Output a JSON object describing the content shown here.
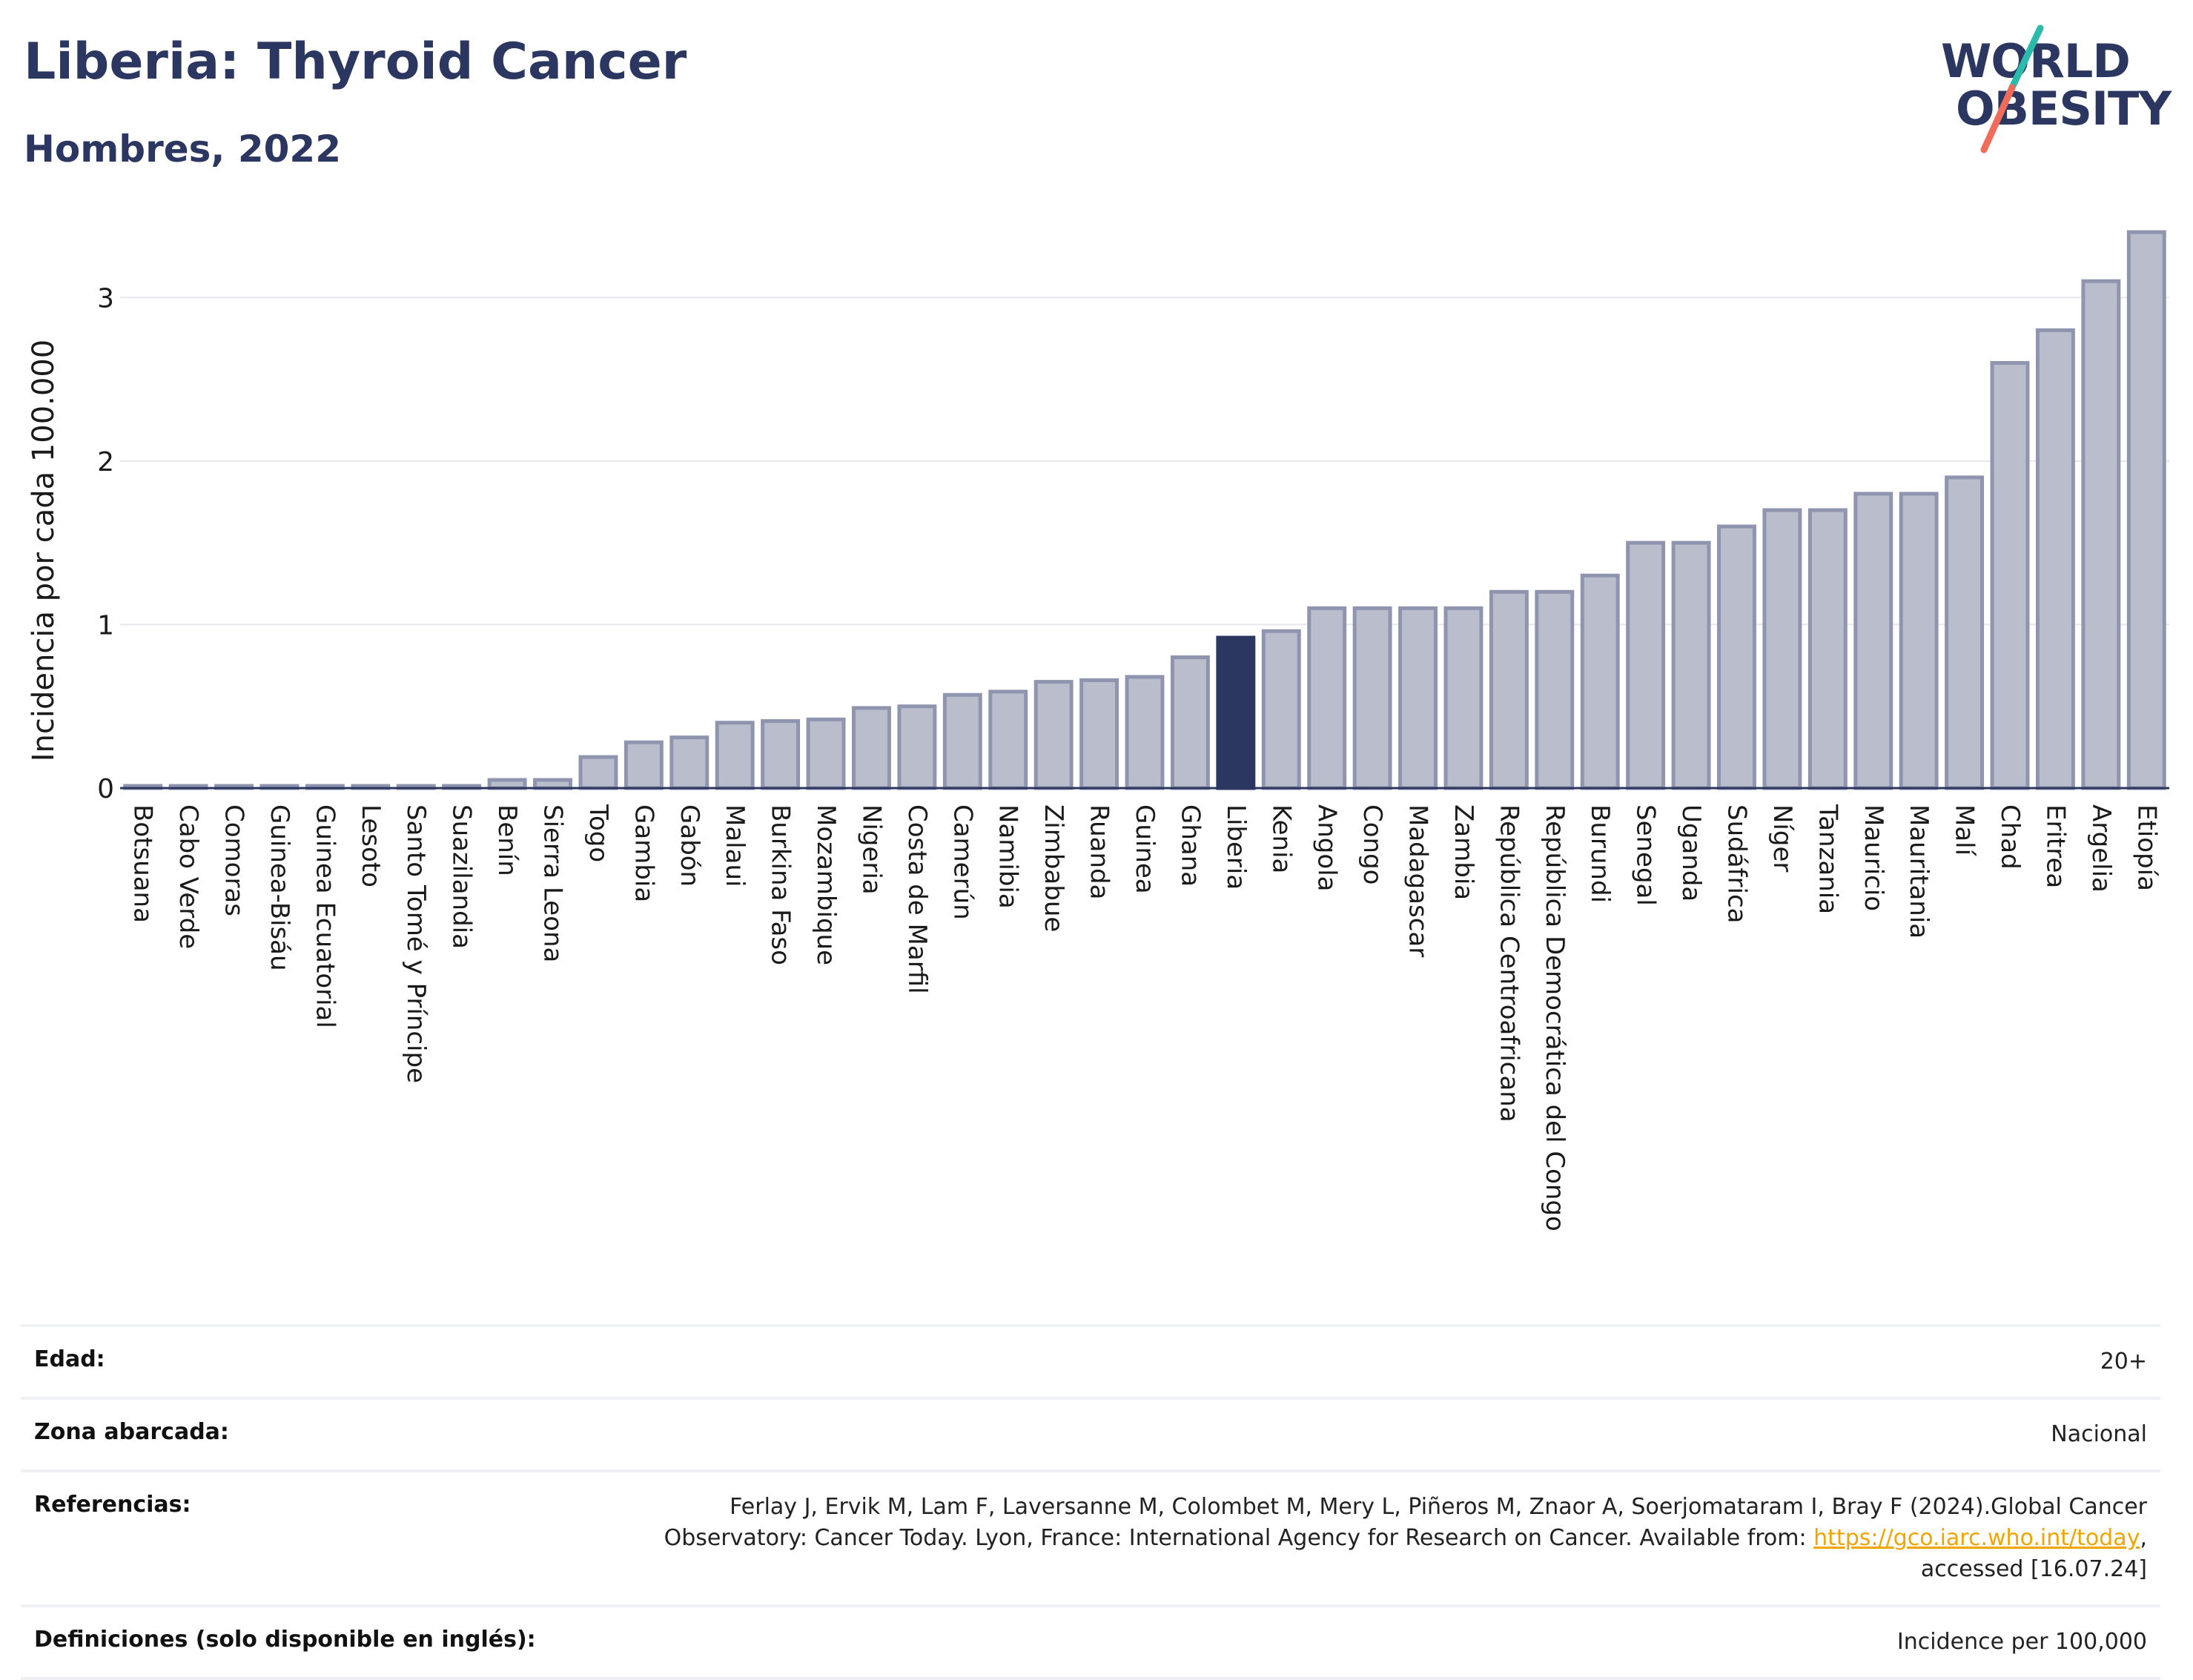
{
  "header": {
    "title": "Liberia: Thyroid Cancer",
    "subtitle": "Hombres, 2022"
  },
  "logo": {
    "line1": "WORLD",
    "line2": "OBESITY",
    "colors": {
      "text": "#2b3760",
      "slash_top": "#2bbbad",
      "slash_bottom": "#ef6c5a"
    }
  },
  "colors": {
    "bar_fill": "#b9bdcc",
    "bar_stroke": "#8f95ae",
    "highlight": "#2b3760",
    "grid": "#e6e8ee",
    "axis": "#2b3760"
  },
  "chart_data": {
    "type": "bar",
    "title": "Liberia: Thyroid Cancer",
    "subtitle": "Hombres, 2022",
    "xlabel": "",
    "ylabel": "Incidencia por cada 100.000",
    "ylim": [
      0,
      3.45
    ],
    "yticks": [
      0,
      1,
      2,
      3
    ],
    "grid": true,
    "highlight": "Liberia",
    "categories": [
      "Botsuana",
      "Cabo Verde",
      "Comoras",
      "Guinea-Bisáu",
      "Guinea Ecuatorial",
      "Lesoto",
      "Santo Tomé y Príncipe",
      "Suazilandia",
      "Benín",
      "Sierra Leona",
      "Togo",
      "Gambia",
      "Gabón",
      "Malaui",
      "Burkina Faso",
      "Mozambique",
      "Nigeria",
      "Costa de Marfil",
      "Camerún",
      "Namibia",
      "Zimbabue",
      "Ruanda",
      "Guinea",
      "Ghana",
      "Liberia",
      "Kenia",
      "Angola",
      "Congo",
      "Madagascar",
      "Zambia",
      "República Centroafricana",
      "República Democrática del Congo",
      "Burundi",
      "Senegal",
      "Uganda",
      "Sudáfrica",
      "Níger",
      "Tanzania",
      "Mauricio",
      "Mauritania",
      "Malí",
      "Chad",
      "Eritrea",
      "Argelia",
      "Etiopía"
    ],
    "values": [
      0,
      0,
      0,
      0,
      0,
      0,
      0,
      0,
      0.05,
      0.05,
      0.19,
      0.28,
      0.31,
      0.4,
      0.41,
      0.42,
      0.49,
      0.5,
      0.57,
      0.59,
      0.65,
      0.66,
      0.68,
      0.8,
      0.92,
      0.96,
      1.1,
      1.1,
      1.1,
      1.1,
      1.2,
      1.2,
      1.3,
      1.5,
      1.5,
      1.6,
      1.7,
      1.7,
      1.8,
      1.8,
      1.9,
      2.6,
      2.8,
      3.1,
      3.4
    ]
  },
  "info": {
    "rows": [
      {
        "key": "Edad:",
        "value": "20+"
      },
      {
        "key": "Zona abarcada:",
        "value": "Nacional"
      }
    ],
    "references": {
      "key": "Referencias:",
      "text_before": "Ferlay J, Ervik M, Lam F, Laversanne M, Colombet M, Mery L, Piñeros M, Znaor A, Soerjomataram I, Bray F (2024).Global Cancer Observatory: Cancer Today. Lyon, France: International Agency for Research on Cancer. Available from: ",
      "link": "https://gco.iarc.who.int/today",
      "text_after": ", accessed [16.07.24]"
    },
    "definitions": {
      "key": "Definiciones (solo disponible en inglés):",
      "value": "Incidence per 100,000"
    }
  }
}
